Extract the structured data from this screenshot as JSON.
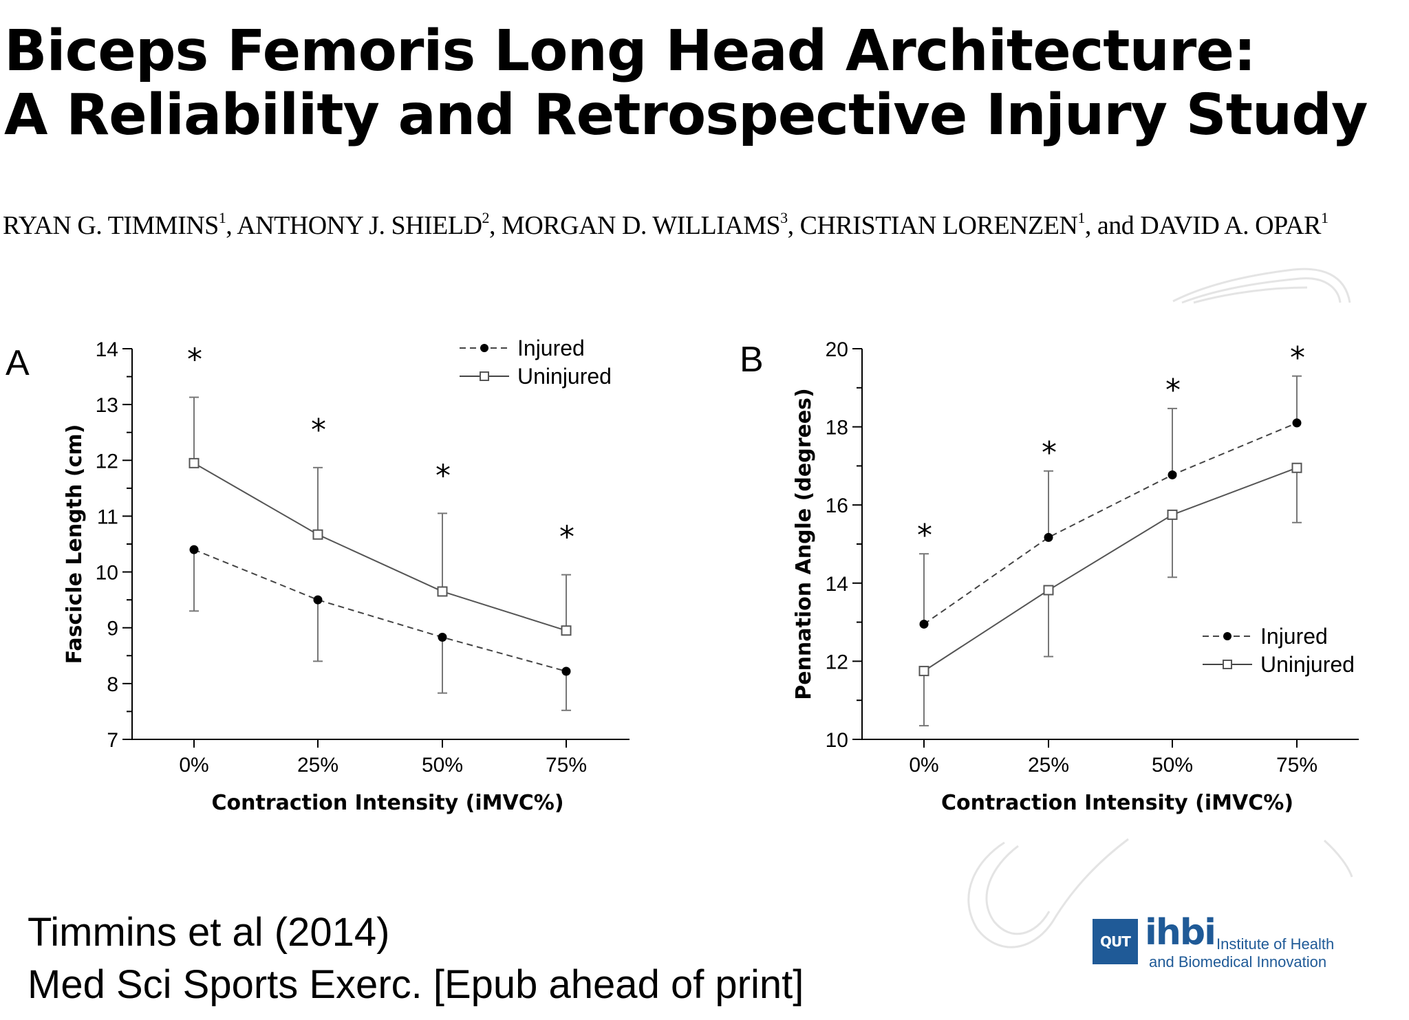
{
  "slide": {
    "title_line1": "Biceps Femoris Long Head Architecture:",
    "title_line2": "A Reliability and Retrospective Injury Study",
    "authors": [
      {
        "name": "RYAN G. TIMMINS",
        "sup": "1",
        "sep": ", "
      },
      {
        "name": "ANTHONY J. SHIELD",
        "sup": "2",
        "sep": ", "
      },
      {
        "name": "MORGAN D. WILLIAMS",
        "sup": "3",
        "sep": ", "
      },
      {
        "name": "CHRISTIAN LORENZEN",
        "sup": "1",
        "sep": ", and "
      },
      {
        "name": "DAVID A. OPAR",
        "sup": "1",
        "sep": ""
      }
    ],
    "citation_line1": "Timmins et al (2014)",
    "citation_line2": "Med Sci Sports Exerc. [Epub ahead of print]",
    "logo": {
      "badge": "QUT",
      "name": "ihbi",
      "line1": "Institute of Health",
      "line2": "and Biomedical Innovation",
      "color": "#1f5a97"
    }
  },
  "chart_data": [
    {
      "panel": "A",
      "type": "line",
      "categories": [
        "0%",
        "25%",
        "50%",
        "75%"
      ],
      "xlabel": "Contraction Intensity (iMVC%)",
      "ylabel": "Fascicle Length (cm)",
      "ylim": [
        7,
        14
      ],
      "yticks": [
        7,
        8,
        9,
        10,
        11,
        12,
        13,
        14
      ],
      "legend_position": "top-right",
      "significance": [
        "*",
        "*",
        "*",
        "*"
      ],
      "series": [
        {
          "name": "Injured",
          "style": "dashed",
          "marker": "filled-circle",
          "values": [
            10.4,
            9.5,
            8.83,
            8.22
          ],
          "error_down": [
            1.1,
            1.1,
            1.0,
            0.7
          ]
        },
        {
          "name": "Uninjured",
          "style": "solid",
          "marker": "open-square",
          "values": [
            11.95,
            10.67,
            9.65,
            8.95
          ],
          "error_up": [
            1.18,
            1.2,
            1.4,
            1.0
          ]
        }
      ]
    },
    {
      "panel": "B",
      "type": "line",
      "categories": [
        "0%",
        "25%",
        "50%",
        "75%"
      ],
      "xlabel": "Contraction Intensity (iMVC%)",
      "ylabel": "Pennation Angle (degrees)",
      "ylim": [
        10,
        20
      ],
      "yticks": [
        10,
        12,
        14,
        16,
        18,
        20
      ],
      "legend_position": "bottom-right",
      "significance": [
        "*",
        "*",
        "*",
        "*"
      ],
      "series": [
        {
          "name": "Injured",
          "style": "dashed",
          "marker": "filled-circle",
          "values": [
            12.95,
            15.17,
            16.77,
            18.1
          ],
          "error_up": [
            1.8,
            1.7,
            1.7,
            1.2
          ]
        },
        {
          "name": "Uninjured",
          "style": "solid",
          "marker": "open-square",
          "values": [
            11.75,
            13.82,
            15.75,
            16.95
          ],
          "error_down": [
            1.4,
            1.7,
            1.6,
            1.4
          ]
        }
      ]
    }
  ]
}
